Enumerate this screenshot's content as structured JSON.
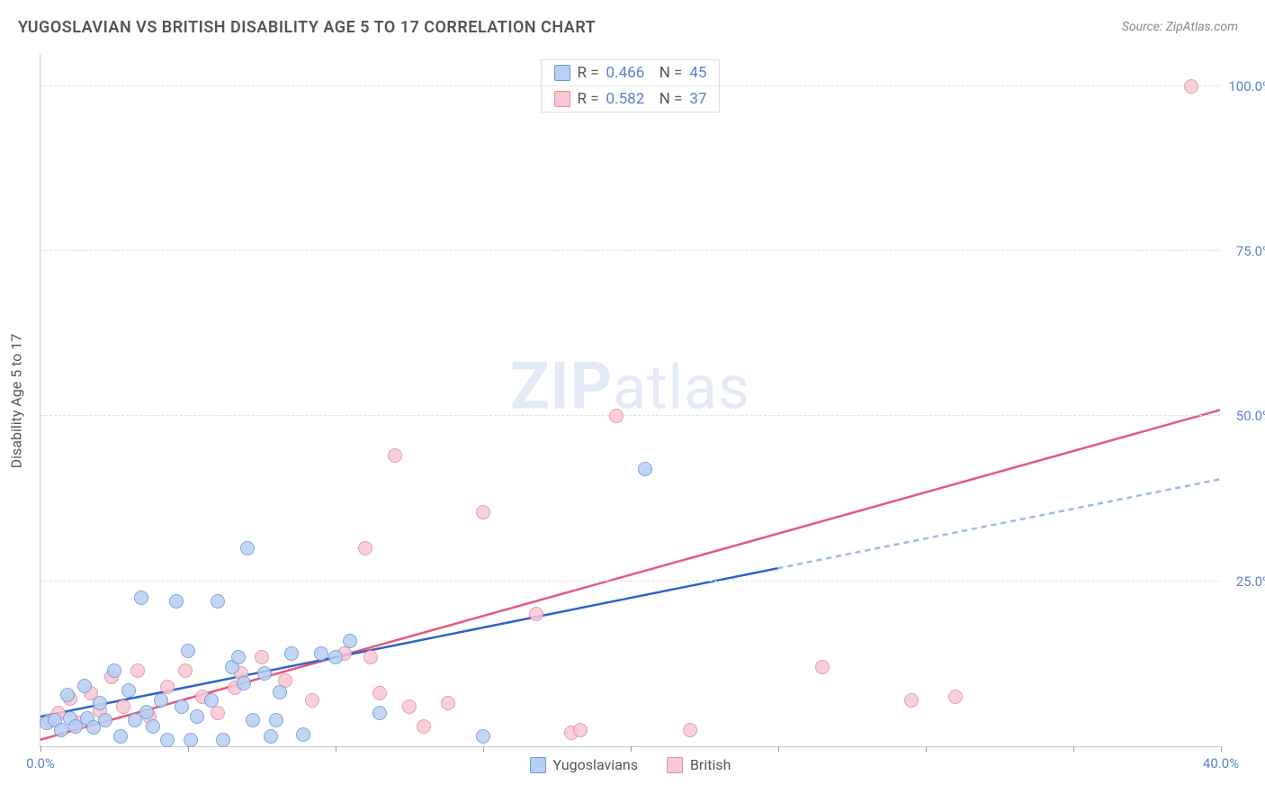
{
  "title": "YUGOSLAVIAN VS BRITISH DISABILITY AGE 5 TO 17 CORRELATION CHART",
  "source": "Source: ZipAtlas.com",
  "y_axis_label": "Disability Age 5 to 17",
  "watermark": {
    "bold": "ZIP",
    "rest": "atlas"
  },
  "chart": {
    "type": "scatter",
    "x_range": [
      0,
      40
    ],
    "y_range": [
      0,
      105
    ],
    "x_ticks": [
      0,
      5,
      10,
      15,
      20,
      25,
      30,
      35,
      40
    ],
    "x_tick_labels": {
      "0": "0.0%",
      "40": "40.0%"
    },
    "y_gridlines": [
      25,
      50,
      75,
      100
    ],
    "y_tick_labels": {
      "25": "25.0%",
      "50": "50.0%",
      "75": "75.0%",
      "100": "100.0%"
    },
    "background_color": "#ffffff",
    "grid_color": "#e0e0e0",
    "axis_color": "#cccccc",
    "tick_label_color": "#5b7fd1",
    "series": {
      "yugoslavians": {
        "label": "Yugoslavians",
        "fill": "#b8cff2",
        "stroke": "#6c96de",
        "trend_color": "#2e63c9",
        "trend_dash_color": "#9db9e6",
        "R": "0.466",
        "N": "45",
        "trend": {
          "x1": 0,
          "y1": 4.5,
          "x2": 25,
          "y2": 27,
          "extend_x2": 40,
          "extend_y2": 40.5
        },
        "points": [
          [
            0.2,
            3.5
          ],
          [
            0.5,
            4.0
          ],
          [
            0.7,
            2.5
          ],
          [
            0.9,
            7.8
          ],
          [
            1.0,
            4.2
          ],
          [
            1.2,
            3.0
          ],
          [
            1.5,
            9.2
          ],
          [
            1.6,
            4.2
          ],
          [
            1.8,
            2.9
          ],
          [
            2.0,
            6.5
          ],
          [
            2.2,
            4.0
          ],
          [
            2.5,
            11.5
          ],
          [
            2.7,
            1.5
          ],
          [
            3.0,
            8.5
          ],
          [
            3.2,
            4.0
          ],
          [
            3.4,
            22.5
          ],
          [
            3.6,
            5.2
          ],
          [
            3.8,
            3.0
          ],
          [
            4.1,
            7.0
          ],
          [
            4.3,
            1.0
          ],
          [
            4.6,
            22.0
          ],
          [
            5.0,
            14.5
          ],
          [
            5.1,
            1.0
          ],
          [
            5.3,
            4.5
          ],
          [
            5.8,
            7.0
          ],
          [
            6.0,
            22.0
          ],
          [
            6.2,
            1.0
          ],
          [
            6.5,
            12.0
          ],
          [
            6.7,
            13.5
          ],
          [
            7.0,
            30.0
          ],
          [
            7.2,
            4.0
          ],
          [
            7.6,
            11.0
          ],
          [
            7.8,
            1.5
          ],
          [
            8.1,
            8.2
          ],
          [
            8.5,
            14.0
          ],
          [
            8.9,
            1.8
          ],
          [
            9.5,
            14.0
          ],
          [
            10.0,
            13.5
          ],
          [
            10.5,
            16.0
          ],
          [
            11.5,
            5.0
          ],
          [
            15.0,
            1.5
          ],
          [
            20.5,
            42.0
          ],
          [
            8.0,
            4.0
          ],
          [
            4.8,
            6.0
          ],
          [
            6.9,
            9.5
          ]
        ]
      },
      "british": {
        "label": "British",
        "fill": "#f7c8d4",
        "stroke": "#e68aa3",
        "trend_color": "#e35a7e",
        "R": "0.582",
        "N": "37",
        "trend": {
          "x1": 0,
          "y1": 1.0,
          "x2": 40,
          "y2": 51.0
        },
        "points": [
          [
            0.3,
            3.8
          ],
          [
            0.6,
            5.0
          ],
          [
            1.0,
            7.2
          ],
          [
            1.3,
            3.5
          ],
          [
            1.7,
            8.0
          ],
          [
            2.0,
            5.5
          ],
          [
            2.4,
            10.5
          ],
          [
            2.8,
            6.0
          ],
          [
            3.3,
            11.5
          ],
          [
            3.7,
            4.5
          ],
          [
            4.3,
            9.0
          ],
          [
            4.9,
            11.5
          ],
          [
            5.5,
            7.5
          ],
          [
            6.0,
            5.0
          ],
          [
            6.6,
            8.8
          ],
          [
            6.8,
            11.0
          ],
          [
            7.5,
            13.5
          ],
          [
            8.3,
            10.0
          ],
          [
            9.2,
            7.0
          ],
          [
            10.3,
            14.0
          ],
          [
            11.0,
            30.0
          ],
          [
            11.2,
            13.5
          ],
          [
            11.5,
            8.0
          ],
          [
            12.0,
            44.0
          ],
          [
            12.5,
            6.0
          ],
          [
            13.0,
            3.0
          ],
          [
            13.8,
            6.5
          ],
          [
            15.0,
            35.5
          ],
          [
            16.8,
            20.0
          ],
          [
            18.0,
            2.0
          ],
          [
            18.3,
            2.5
          ],
          [
            19.5,
            50.0
          ],
          [
            22.0,
            2.5
          ],
          [
            26.5,
            12.0
          ],
          [
            29.5,
            7.0
          ],
          [
            31.0,
            7.5
          ],
          [
            39.0,
            100.0
          ]
        ]
      }
    }
  },
  "bottom_legend": [
    {
      "key": "yugoslavians",
      "label": "Yugoslavians"
    },
    {
      "key": "british",
      "label": "British"
    }
  ]
}
